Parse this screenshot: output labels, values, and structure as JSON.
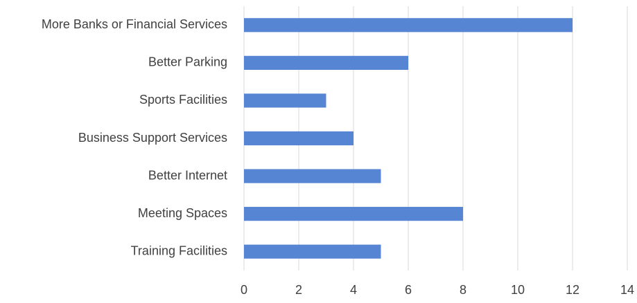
{
  "chart_data": {
    "type": "bar",
    "orientation": "horizontal",
    "categories": [
      "More Banks or Financial Services",
      "Better Parking",
      "Sports Facilities",
      "Business Support Services",
      "Better Internet",
      "Meeting Spaces",
      "Training Facilities"
    ],
    "values": [
      12,
      6,
      3,
      4,
      5,
      8,
      5
    ],
    "color": "#5585d3",
    "xlim": [
      0,
      14
    ],
    "xticks": [
      0,
      2,
      4,
      6,
      8,
      10,
      12,
      14
    ],
    "grid": true
  }
}
